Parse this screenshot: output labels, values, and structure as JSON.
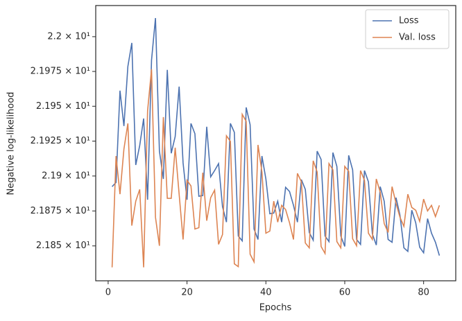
{
  "chart_data": {
    "type": "line",
    "log_y": true,
    "xlabel": "Epochs",
    "ylabel": "Negative log-likelihood",
    "legend": "upper right",
    "xlim": [
      -3.15,
      88.15
    ],
    "xticks": [
      0,
      20,
      40,
      60,
      80
    ],
    "ylim": [
      21.8251,
      22.0224
    ],
    "yticks": [
      {
        "value": 21.85,
        "label": "2.185 × 10¹"
      },
      {
        "value": 21.875,
        "label": "2.1875 × 10¹"
      },
      {
        "value": 21.9,
        "label": "2.19 × 10¹"
      },
      {
        "value": 21.925,
        "label": "2.1925 × 10¹"
      },
      {
        "value": 21.95,
        "label": "2.195 × 10¹"
      },
      {
        "value": 21.975,
        "label": "2.1975 × 10¹"
      },
      {
        "value": 22.0,
        "label": "2.2 × 10¹"
      }
    ],
    "x": [
      1,
      2,
      3,
      4,
      5,
      6,
      7,
      8,
      9,
      10,
      11,
      12,
      13,
      14,
      15,
      16,
      17,
      18,
      19,
      20,
      21,
      22,
      23,
      24,
      25,
      26,
      27,
      28,
      29,
      30,
      31,
      32,
      33,
      34,
      35,
      36,
      37,
      38,
      39,
      40,
      41,
      42,
      43,
      44,
      45,
      46,
      47,
      48,
      49,
      50,
      51,
      52,
      53,
      54,
      55,
      56,
      57,
      58,
      59,
      60,
      61,
      62,
      63,
      64,
      65,
      66,
      67,
      68,
      69,
      70,
      71,
      72,
      73,
      74,
      75,
      76,
      77,
      78,
      79,
      80,
      81,
      82,
      83,
      84
    ],
    "series": [
      {
        "name": "Loss",
        "color": "#4c72b0",
        "values": [
          21.8924,
          21.8954,
          21.9612,
          21.9358,
          21.9786,
          21.9955,
          21.9079,
          21.9218,
          21.9412,
          21.883,
          21.9831,
          22.0134,
          21.9178,
          21.8979,
          21.9761,
          21.9163,
          21.9283,
          21.9641,
          21.9094,
          21.883,
          21.9377,
          21.9303,
          21.8855,
          21.886,
          21.9353,
          21.8994,
          21.9039,
          21.9089,
          21.878,
          21.867,
          21.9377,
          21.9313,
          21.8571,
          21.8536,
          21.9492,
          21.9368,
          21.8621,
          21.8546,
          21.9143,
          21.8979,
          21.873,
          21.8735,
          21.882,
          21.867,
          21.8919,
          21.8889,
          21.879,
          21.867,
          21.8974,
          21.8904,
          21.8596,
          21.8541,
          21.9178,
          21.9119,
          21.8571,
          21.8531,
          21.9168,
          21.9069,
          21.8571,
          21.8496,
          21.9148,
          21.9044,
          21.8546,
          21.8511,
          21.9039,
          21.8959,
          21.8586,
          21.8506,
          21.8924,
          21.882,
          21.8546,
          21.8526,
          21.8845,
          21.872,
          21.8486,
          21.8461,
          21.8755,
          21.8665,
          21.8491,
          21.8451,
          21.8695,
          21.8591,
          21.8526,
          21.8431
        ]
      },
      {
        "name": "Val. loss",
        "color": "#dd8452",
        "values": [
          21.8347,
          21.9143,
          21.887,
          21.9193,
          21.9377,
          21.8645,
          21.882,
          21.8904,
          21.8347,
          21.9467,
          21.9766,
          21.8705,
          21.8501,
          21.9422,
          21.884,
          21.884,
          21.9203,
          21.887,
          21.8546,
          21.8969,
          21.8929,
          21.8621,
          21.863,
          21.9024,
          21.868,
          21.8845,
          21.8899,
          21.8511,
          21.8581,
          21.9288,
          21.9248,
          21.8372,
          21.8352,
          21.9442,
          21.9392,
          21.8441,
          21.8386,
          21.9223,
          21.9029,
          21.8591,
          21.8606,
          21.882,
          21.867,
          21.879,
          21.876,
          21.8665,
          21.8546,
          21.9019,
          21.8959,
          21.8521,
          21.8486,
          21.9109,
          21.9029,
          21.8496,
          21.8446,
          21.9089,
          21.9044,
          21.8531,
          21.8486,
          21.9069,
          21.9034,
          21.8551,
          21.8501,
          21.9039,
          21.8969,
          21.8591,
          21.8546,
          21.8979,
          21.8884,
          21.866,
          21.8596,
          21.8924,
          21.8805,
          21.8705,
          21.864,
          21.887,
          21.8775,
          21.8755,
          21.8675,
          21.8835,
          21.875,
          21.879,
          21.871,
          21.879
        ]
      }
    ]
  }
}
